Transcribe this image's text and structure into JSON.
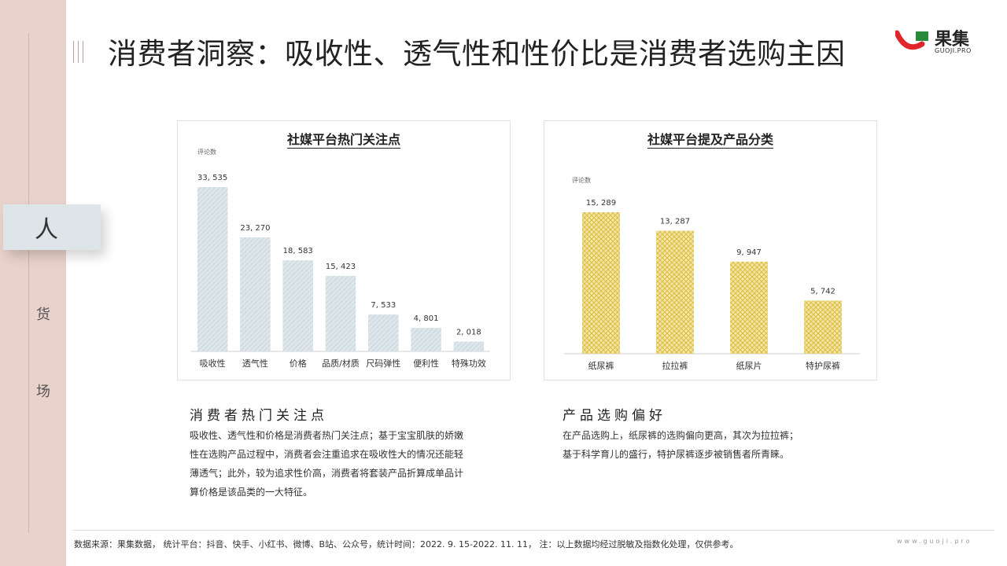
{
  "header": {
    "title": "消费者洞察：吸收性、透气性和性价比是消费者选购主因",
    "logo_text": "果集",
    "logo_sub": "GUOJI.PRO"
  },
  "sidebar": {
    "items": [
      {
        "label": "人",
        "active": true
      },
      {
        "label": "货",
        "active": false
      },
      {
        "label": "场",
        "active": false
      }
    ]
  },
  "chart_left": {
    "title": "社媒平台热门关注点",
    "colors": {
      "bar": "#dde6ea",
      "hatch": "#c9d6dc"
    }
  },
  "chart_right": {
    "title": "社媒平台提及产品分类",
    "colors": {
      "bar": "#f3e3a6",
      "hatch": "#dcc040"
    }
  },
  "chart_data": [
    {
      "type": "bar",
      "title": "社媒平台热门关注点",
      "ylabel": "评论数",
      "categories": [
        "吸收性",
        "透气性",
        "价格",
        "品质/材质",
        "尺码弹性",
        "便利性",
        "特殊功效"
      ],
      "values": [
        33535,
        23270,
        18583,
        15423,
        7533,
        4801,
        2018
      ],
      "value_labels": [
        "33, 535",
        "23, 270",
        "18, 583",
        "15, 423",
        "7, 533",
        "4, 801",
        "2, 018"
      ]
    },
    {
      "type": "bar",
      "title": "社媒平台提及产品分类",
      "ylabel": "评论数",
      "categories": [
        "纸尿裤",
        "拉拉裤",
        "纸尿片",
        "特护尿裤"
      ],
      "values": [
        15289,
        13287,
        9947,
        5742
      ],
      "value_labels": [
        "15, 289",
        "13, 287",
        "9, 947",
        "5, 742"
      ]
    }
  ],
  "sections": {
    "left": {
      "heading": "消费者热门关注点",
      "lines": [
        "吸收性、透气性和价格是消费者热门关注点；基于宝宝肌肤的娇嫩",
        "性在选购产品过程中，消费者会注重追求在吸收性大的情况还能轻",
        "薄透气；此外，较为追求性价高，消费者将套装产品折算成单品计",
        "算价格是该品类的一大特征。"
      ]
    },
    "right": {
      "heading": "产品选购偏好",
      "lines": [
        "在产品选购上，纸尿裤的选购偏向更高，其次为拉拉裤；",
        "基于科学育儿的盛行，特护尿裤逐步被销售者所青睐。"
      ]
    }
  },
  "footer": {
    "source": "数据来源：果集数据，  统计平台：抖音、快手、小红书、微博、B站、公众号，统计时间：2022. 9. 15-2022. 11. 11，  注：以上数据均经过脱敏及指数化处理，仅供参考。",
    "url": "www.guoji.pro"
  }
}
